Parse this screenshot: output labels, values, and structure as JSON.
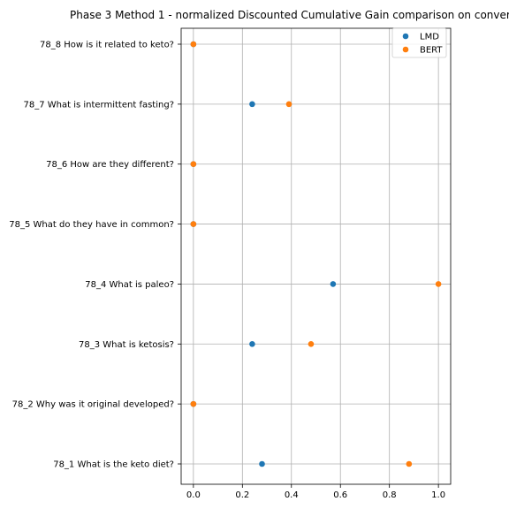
{
  "chart_data": {
    "type": "scatter",
    "title": "Phase 3 Method 1 - normalized Discounted Cumulative Gain comparison on conver",
    "xlabel": "",
    "ylabel": "",
    "xlim": [
      -0.05,
      1.05
    ],
    "xticks": [
      "0.0",
      "0.2",
      "0.4",
      "0.6",
      "0.8",
      "1.0"
    ],
    "categories": [
      "78_1 What is the keto diet?",
      "78_2 Why was it original developed?",
      "78_3 What is ketosis?",
      "78_4 What is paleo?",
      "78_5 What do they have in common?",
      "78_6 How are they different?",
      "78_7 What is intermittent fasting?",
      "78_8 How is it related to keto?"
    ],
    "series": [
      {
        "name": "LMD",
        "color": "#1f77b4",
        "values": [
          0.28,
          0.0,
          0.24,
          0.57,
          0.0,
          0.0,
          0.24,
          0.0
        ]
      },
      {
        "name": "BERT",
        "color": "#ff7f0e",
        "values": [
          0.88,
          0.0,
          0.48,
          1.0,
          0.0,
          0.0,
          0.39,
          0.0
        ]
      }
    ],
    "grid": true,
    "legend_position": "upper-right"
  }
}
